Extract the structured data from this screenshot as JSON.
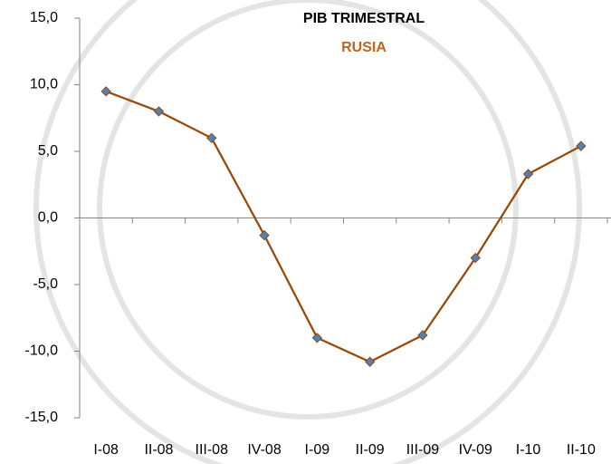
{
  "chart_data": {
    "type": "line",
    "title": "PIB TRIMESTRAL",
    "subtitle": "RUSIA",
    "categories": [
      "I-08",
      "II-08",
      "III-08",
      "IV-08",
      "I-09",
      "II-09",
      "III-09",
      "IV-09",
      "I-10",
      "II-10"
    ],
    "values": [
      9.5,
      8.0,
      6.0,
      -1.3,
      -9.0,
      -10.8,
      -8.8,
      -3.0,
      3.3,
      5.4
    ],
    "color": "#984807",
    "marker_color": "#4f81bd",
    "ylim": [
      -15,
      15
    ],
    "yticks": [
      {
        "value": -15,
        "label": "-15,0"
      },
      {
        "value": -10,
        "label": "-10,0"
      },
      {
        "value": -5,
        "label": "-5,0"
      },
      {
        "value": 0,
        "label": "0,0"
      },
      {
        "value": 5,
        "label": "5,0"
      },
      {
        "value": 10,
        "label": "10,0"
      },
      {
        "value": 15,
        "label": "15,0"
      }
    ],
    "grid": false
  }
}
